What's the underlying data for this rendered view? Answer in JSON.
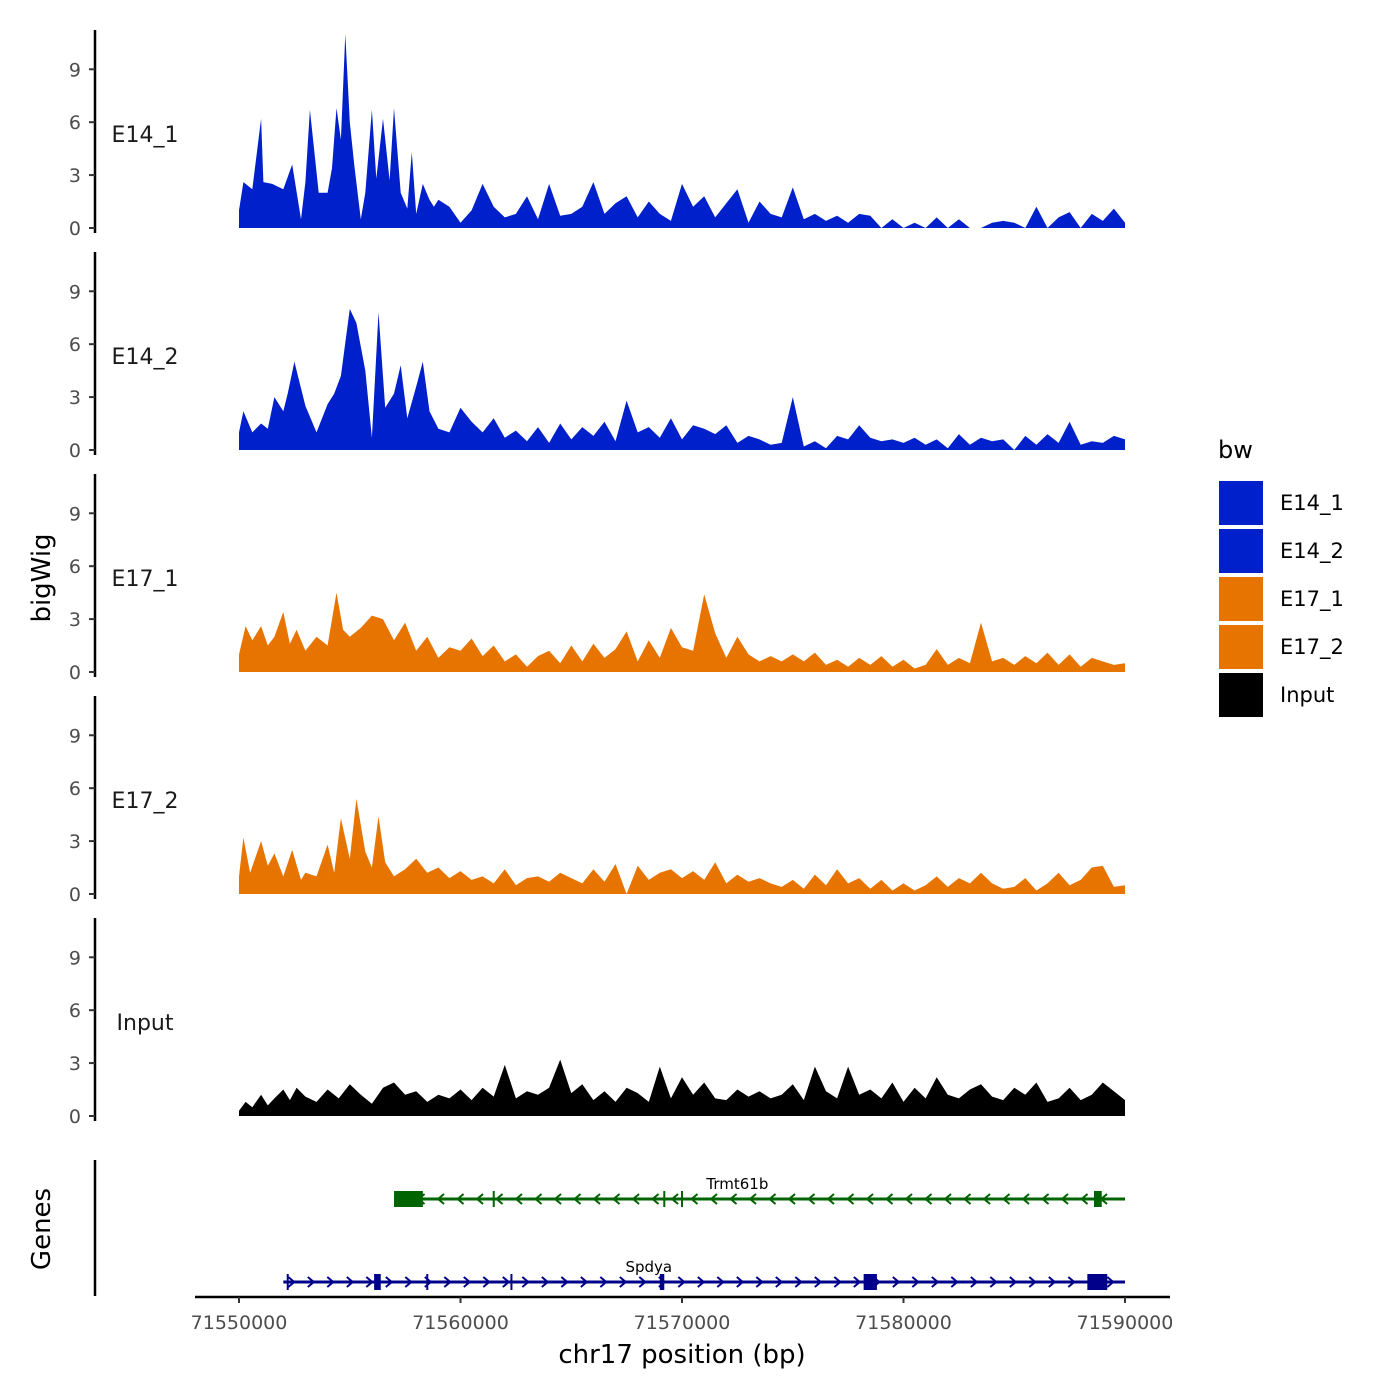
{
  "chart_data": {
    "type": "area",
    "title": "",
    "xlabel": "chr17 position (bp)",
    "ylabel": "bigWig",
    "xlim": [
      71550000,
      71590000
    ],
    "ylim": [
      0,
      11
    ],
    "x_ticks": [
      "71550000",
      "71560000",
      "71570000",
      "71580000",
      "71590000"
    ],
    "x_tick_values": [
      71550000,
      71560000,
      71570000,
      71580000,
      71590000
    ],
    "y_ticks": [
      "0",
      "3",
      "6",
      "9"
    ],
    "y_tick_values": [
      0,
      3,
      6,
      9
    ],
    "legend_title": "bw",
    "legend": [
      {
        "name": "E14_1",
        "color": "#0020CC"
      },
      {
        "name": "E14_2",
        "color": "#0020CC"
      },
      {
        "name": "E17_1",
        "color": "#E87400"
      },
      {
        "name": "E17_2",
        "color": "#E87400"
      },
      {
        "name": "Input",
        "color": "#000000"
      }
    ],
    "series": [
      {
        "name": "E14_1",
        "color": "#0020CC",
        "x": [
          71550000,
          71550200,
          71550600,
          71551000,
          71551100,
          71551500,
          71552000,
          71552400,
          71552800,
          71553000,
          71553200,
          71553600,
          71554000,
          71554200,
          71554400,
          71554600,
          71554800,
          71555000,
          71555200,
          71555500,
          71555700,
          71556000,
          71556200,
          71556500,
          71556800,
          71557000,
          71557300,
          71557600,
          71557800,
          71558000,
          71558300,
          71558600,
          71558800,
          71559000,
          71559500,
          71560000,
          71560500,
          71561000,
          71561500,
          71562000,
          71562500,
          71563000,
          71563500,
          71564000,
          71564500,
          71565000,
          71565500,
          71566000,
          71566500,
          71567000,
          71567500,
          71568000,
          71568500,
          71569000,
          71569500,
          71570000,
          71570500,
          71571000,
          71571500,
          71572000,
          71572500,
          71573000,
          71573500,
          71574000,
          71574500,
          71575000,
          71575500,
          71576000,
          71576500,
          71577000,
          71577500,
          71578000,
          71578500,
          71579000,
          71579500,
          71580000,
          71580500,
          71581000,
          71581500,
          71582000,
          71582500,
          71583000,
          71583500,
          71584000,
          71584500,
          71585000,
          71585500,
          71586000,
          71586500,
          71587000,
          71587500,
          71588000,
          71588500,
          71589000,
          71589500,
          71590000
        ],
        "y": [
          1.0,
          2.6,
          2.2,
          6.2,
          2.6,
          2.5,
          2.2,
          3.6,
          0.5,
          2.6,
          6.7,
          2.0,
          2.0,
          3.4,
          6.8,
          5.0,
          11.0,
          6.0,
          3.6,
          0.5,
          2.0,
          6.7,
          2.8,
          6.2,
          2.7,
          6.8,
          2.0,
          1.1,
          4.3,
          0.8,
          2.5,
          1.6,
          1.2,
          1.6,
          1.2,
          0.3,
          1.0,
          2.5,
          1.2,
          0.6,
          0.8,
          1.8,
          0.5,
          2.5,
          0.7,
          0.8,
          1.2,
          2.6,
          0.8,
          1.4,
          1.8,
          0.6,
          1.5,
          0.8,
          0.4,
          2.5,
          1.2,
          1.8,
          0.6,
          1.4,
          2.2,
          0.3,
          1.5,
          0.8,
          0.6,
          2.3,
          0.5,
          0.8,
          0.4,
          0.7,
          0.3,
          0.8,
          0.7,
          0.0,
          0.5,
          0.0,
          0.3,
          0.0,
          0.6,
          0.0,
          0.5,
          0.0,
          0.0,
          0.3,
          0.4,
          0.3,
          0.0,
          1.2,
          0.0,
          0.6,
          0.9,
          0.0,
          0.8,
          0.4,
          1.1,
          0.3
        ]
      },
      {
        "name": "E14_2",
        "color": "#0020CC",
        "x": [
          71550000,
          71550200,
          71550600,
          71551000,
          71551300,
          71551600,
          71552000,
          71552200,
          71552500,
          71553000,
          71553500,
          71554000,
          71554300,
          71554600,
          71555000,
          71555300,
          71555700,
          71556000,
          71556300,
          71556600,
          71557000,
          71557300,
          71557600,
          71558000,
          71558300,
          71558600,
          71559000,
          71559500,
          71560000,
          71560500,
          71561000,
          71561500,
          71562000,
          71562500,
          71563000,
          71563500,
          71564000,
          71564500,
          71565000,
          71565500,
          71566000,
          71566500,
          71567000,
          71567500,
          71568000,
          71568500,
          71569000,
          71569500,
          71570000,
          71570500,
          71571000,
          71571500,
          71572000,
          71572500,
          71573000,
          71573500,
          71574000,
          71574500,
          71575000,
          71575500,
          71576000,
          71576500,
          71577000,
          71577500,
          71578000,
          71578500,
          71579000,
          71579500,
          71580000,
          71580500,
          71581000,
          71581500,
          71582000,
          71582500,
          71583000,
          71583500,
          71584000,
          71584500,
          71585000,
          71585500,
          71586000,
          71586500,
          71587000,
          71587500,
          71588000,
          71588500,
          71589000,
          71589500,
          71590000
        ],
        "y": [
          1.0,
          2.2,
          1.0,
          1.5,
          1.2,
          3.0,
          2.2,
          3.2,
          5.0,
          2.5,
          1.0,
          2.6,
          3.2,
          4.2,
          8.0,
          7.2,
          4.5,
          0.7,
          7.8,
          2.4,
          3.2,
          4.8,
          1.8,
          3.6,
          5.0,
          2.2,
          1.2,
          1.0,
          2.4,
          1.6,
          1.0,
          1.8,
          0.7,
          1.1,
          0.5,
          1.3,
          0.4,
          1.5,
          0.6,
          1.3,
          0.8,
          1.6,
          0.5,
          2.8,
          1.0,
          1.3,
          0.7,
          1.8,
          0.6,
          1.4,
          1.2,
          0.9,
          1.4,
          0.4,
          0.8,
          0.6,
          0.3,
          0.4,
          3.0,
          0.2,
          0.5,
          0.1,
          0.8,
          0.6,
          1.4,
          0.7,
          0.5,
          0.6,
          0.4,
          0.7,
          0.3,
          0.6,
          0.1,
          0.9,
          0.3,
          0.7,
          0.5,
          0.6,
          0.0,
          0.8,
          0.3,
          0.9,
          0.4,
          1.6,
          0.3,
          0.5,
          0.4,
          0.8,
          0.6
        ]
      },
      {
        "name": "E17_1",
        "color": "#E87400",
        "x": [
          71550000,
          71550300,
          71550600,
          71551000,
          71551300,
          71551600,
          71552000,
          71552300,
          71552600,
          71553000,
          71553500,
          71554000,
          71554400,
          71554700,
          71555000,
          71555500,
          71556000,
          71556500,
          71557000,
          71557500,
          71558000,
          71558500,
          71559000,
          71559500,
          71560000,
          71560500,
          71561000,
          71561500,
          71562000,
          71562500,
          71563000,
          71563500,
          71564000,
          71564500,
          71565000,
          71565500,
          71566000,
          71566500,
          71567000,
          71567500,
          71568000,
          71568500,
          71569000,
          71569500,
          71570000,
          71570500,
          71571000,
          71571500,
          71572000,
          71572500,
          71573000,
          71573500,
          71574000,
          71574500,
          71575000,
          71575500,
          71576000,
          71576500,
          71577000,
          71577500,
          71578000,
          71578500,
          71579000,
          71579500,
          71580000,
          71580500,
          71581000,
          71581500,
          71582000,
          71582500,
          71583000,
          71583500,
          71584000,
          71584500,
          71585000,
          71585500,
          71586000,
          71586500,
          71587000,
          71587500,
          71588000,
          71588500,
          71589000,
          71589500,
          71590000
        ],
        "y": [
          1.0,
          2.6,
          1.8,
          2.6,
          1.5,
          2.0,
          3.4,
          1.6,
          2.4,
          1.2,
          2.0,
          1.5,
          4.5,
          2.4,
          2.0,
          2.5,
          3.2,
          3.0,
          1.8,
          2.8,
          1.2,
          2.0,
          0.8,
          1.4,
          1.2,
          1.9,
          0.9,
          1.5,
          0.6,
          1.0,
          0.3,
          0.9,
          1.2,
          0.5,
          1.5,
          0.6,
          1.6,
          0.8,
          1.3,
          2.3,
          0.6,
          1.8,
          0.8,
          2.5,
          1.4,
          1.2,
          4.4,
          2.2,
          0.8,
          2.0,
          1.0,
          0.6,
          0.9,
          0.6,
          1.0,
          0.6,
          1.1,
          0.4,
          0.7,
          0.3,
          0.8,
          0.4,
          0.9,
          0.3,
          0.7,
          0.2,
          0.4,
          1.3,
          0.4,
          0.8,
          0.5,
          2.8,
          0.6,
          0.8,
          0.4,
          0.9,
          0.5,
          1.1,
          0.4,
          1.0,
          0.3,
          0.8,
          0.6,
          0.4,
          0.5
        ]
      },
      {
        "name": "E17_2",
        "color": "#E87400",
        "x": [
          71550000,
          71550200,
          71550500,
          71551000,
          71551300,
          71551600,
          71552000,
          71552400,
          71552800,
          71553000,
          71553500,
          71554000,
          71554300,
          71554600,
          71555000,
          71555300,
          71555700,
          71556000,
          71556300,
          71556600,
          71557000,
          71557500,
          71558000,
          71558500,
          71559000,
          71559500,
          71560000,
          71560500,
          71561000,
          71561500,
          71562000,
          71562500,
          71563000,
          71563500,
          71564000,
          71564500,
          71565000,
          71565500,
          71566000,
          71566500,
          71567000,
          71567500,
          71568000,
          71568500,
          71569000,
          71569500,
          71570000,
          71570500,
          71571000,
          71571500,
          71572000,
          71572500,
          71573000,
          71573500,
          71574000,
          71574500,
          71575000,
          71575500,
          71576000,
          71576500,
          71577000,
          71577500,
          71578000,
          71578500,
          71579000,
          71579500,
          71580000,
          71580500,
          71581000,
          71581500,
          71582000,
          71582500,
          71583000,
          71583500,
          71584000,
          71584500,
          71585000,
          71585500,
          71586000,
          71586500,
          71587000,
          71587500,
          71588000,
          71588500,
          71589000,
          71589500,
          71590000
        ],
        "y": [
          1.0,
          3.2,
          1.2,
          3.0,
          1.6,
          2.3,
          1.0,
          2.5,
          0.8,
          1.2,
          1.0,
          2.8,
          1.2,
          4.3,
          2.0,
          5.4,
          2.4,
          1.5,
          4.4,
          1.8,
          1.0,
          1.4,
          2.0,
          1.2,
          1.5,
          0.9,
          1.3,
          0.8,
          1.0,
          0.6,
          1.4,
          0.5,
          0.9,
          1.0,
          0.7,
          1.2,
          0.9,
          0.6,
          1.4,
          0.7,
          1.7,
          0.0,
          1.6,
          0.8,
          1.2,
          1.4,
          0.9,
          1.3,
          0.8,
          1.8,
          0.6,
          1.1,
          0.7,
          0.9,
          0.6,
          0.4,
          0.8,
          0.3,
          1.1,
          0.5,
          1.4,
          0.6,
          0.9,
          0.3,
          0.8,
          0.2,
          0.6,
          0.2,
          0.5,
          1.0,
          0.4,
          0.9,
          0.6,
          1.2,
          0.6,
          0.3,
          0.4,
          0.9,
          0.2,
          0.6,
          1.2,
          0.5,
          0.8,
          1.5,
          1.6,
          0.4,
          0.5
        ]
      },
      {
        "name": "Input",
        "color": "#000000",
        "x": [
          71550000,
          71550300,
          71550600,
          71551000,
          71551300,
          71551600,
          71552000,
          71552300,
          71552600,
          71553000,
          71553500,
          71554000,
          71554500,
          71555000,
          71555500,
          71556000,
          71556500,
          71557000,
          71557500,
          71558000,
          71558500,
          71559000,
          71559500,
          71560000,
          71560500,
          71561000,
          71561500,
          71562000,
          71562500,
          71563000,
          71563500,
          71564000,
          71564500,
          71565000,
          71565500,
          71566000,
          71566500,
          71567000,
          71567500,
          71568000,
          71568500,
          71569000,
          71569500,
          71570000,
          71570500,
          71571000,
          71571500,
          71572000,
          71572500,
          71573000,
          71573500,
          71574000,
          71574500,
          71575000,
          71575500,
          71576000,
          71576500,
          71577000,
          71577500,
          71578000,
          71578500,
          71579000,
          71579500,
          71580000,
          71580500,
          71581000,
          71581500,
          71582000,
          71582500,
          71583000,
          71583500,
          71584000,
          71584500,
          71585000,
          71585500,
          71586000,
          71586500,
          71587000,
          71587500,
          71588000,
          71588500,
          71589000,
          71589500,
          71590000
        ],
        "y": [
          0.3,
          0.8,
          0.5,
          1.2,
          0.6,
          1.0,
          1.5,
          0.9,
          1.6,
          1.1,
          0.8,
          1.5,
          1.0,
          1.8,
          1.2,
          0.7,
          1.6,
          1.9,
          1.2,
          1.4,
          0.8,
          1.2,
          1.0,
          1.5,
          0.9,
          1.6,
          1.1,
          2.9,
          1.0,
          1.4,
          1.2,
          1.6,
          3.2,
          1.3,
          1.8,
          0.9,
          1.4,
          0.8,
          1.6,
          1.3,
          0.8,
          2.8,
          1.0,
          2.2,
          1.2,
          1.9,
          1.0,
          0.9,
          1.5,
          1.1,
          1.4,
          1.0,
          1.2,
          1.8,
          0.9,
          2.8,
          1.4,
          1.0,
          2.8,
          1.2,
          1.5,
          1.0,
          1.9,
          0.8,
          1.6,
          1.0,
          2.2,
          1.2,
          1.0,
          1.5,
          1.8,
          1.1,
          0.9,
          1.6,
          1.2,
          1.9,
          0.8,
          1.0,
          1.6,
          0.9,
          1.2,
          1.9,
          1.4,
          0.9
        ]
      }
    ],
    "genes_label": "Genes",
    "genes": [
      {
        "name": "Trmt61b",
        "strand": "-",
        "color": "#006400",
        "start": 71557000,
        "end": 71590000,
        "exons": [
          [
            71557000,
            71558300
          ],
          [
            71588600,
            71588950
          ]
        ],
        "introns_marks": [
          71561500,
          71569200,
          71570000
        ]
      },
      {
        "name": "Spdya",
        "strand": "+",
        "color": "#00008B",
        "start": 71552000,
        "end": 71590000,
        "exons": [
          [
            71556100,
            71556400
          ],
          [
            71569000,
            71569200
          ],
          [
            71578200,
            71578800
          ],
          [
            71588300,
            71589200
          ]
        ],
        "introns_marks": [
          71552200,
          71558500,
          71562300
        ]
      }
    ]
  }
}
